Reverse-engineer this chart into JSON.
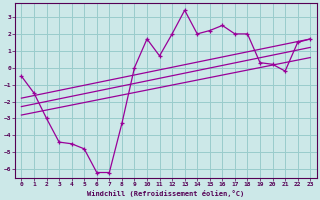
{
  "xlabel": "Windchill (Refroidissement éolien,°C)",
  "background_color": "#cce8e8",
  "grid_color": "#99cccc",
  "line_color": "#990099",
  "xlim": [
    -0.5,
    23.5
  ],
  "ylim": [
    -6.5,
    3.8
  ],
  "xticks": [
    0,
    1,
    2,
    3,
    4,
    5,
    6,
    7,
    8,
    9,
    10,
    11,
    12,
    13,
    14,
    15,
    16,
    17,
    18,
    19,
    20,
    21,
    22,
    23
  ],
  "yticks": [
    -6,
    -5,
    -4,
    -3,
    -2,
    -1,
    0,
    1,
    2,
    3
  ],
  "zigzag_x": [
    0,
    1,
    2,
    3,
    4,
    5,
    6,
    7,
    8,
    9,
    10,
    11,
    12,
    13,
    14,
    15,
    16,
    17,
    18,
    19,
    20,
    21,
    22,
    23
  ],
  "zigzag_y": [
    -0.5,
    -1.5,
    -3.0,
    -4.4,
    -4.5,
    -4.8,
    -6.2,
    -6.2,
    -3.3,
    0.0,
    1.7,
    0.7,
    2.0,
    3.4,
    2.0,
    2.2,
    2.5,
    2.0,
    2.0,
    0.3,
    0.2,
    -0.2,
    1.5,
    1.7
  ],
  "line1_x": [
    0,
    23
  ],
  "line1_y": [
    -1.8,
    1.7
  ],
  "line2_x": [
    0,
    23
  ],
  "line2_y": [
    -2.3,
    1.2
  ],
  "line3_x": [
    0,
    23
  ],
  "line3_y": [
    -2.8,
    0.6
  ]
}
